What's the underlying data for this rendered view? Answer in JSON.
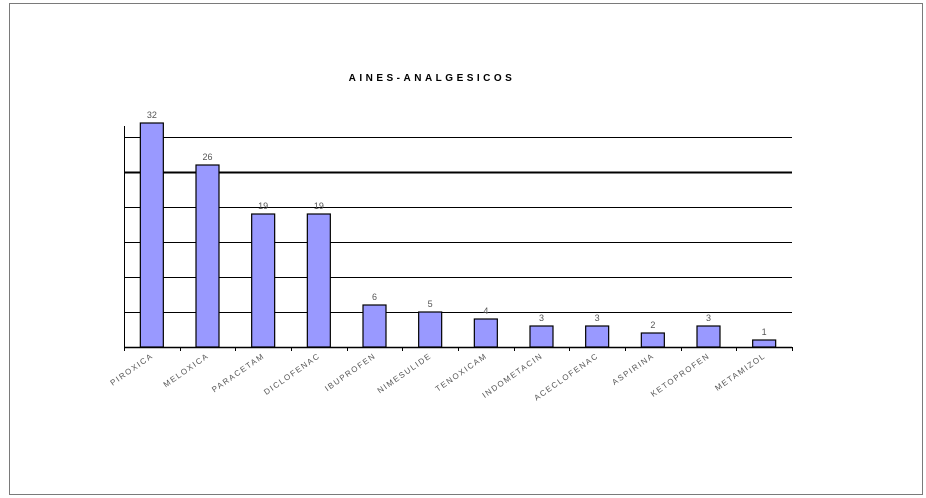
{
  "chart_data": {
    "type": "bar",
    "title": "AINES-ANALGESICOS",
    "categories": [
      "PIROXICAM",
      "MELOXICAM",
      "PARACETAMOL",
      "DICLOFENAC",
      "IBUPROFENO",
      "NIMESULIDE",
      "TENOXICAM",
      "INDOMETACINA",
      "ACECLOFENAC",
      "ASPIRINA",
      "KETOPROFENO",
      "METAMIZOL"
    ],
    "tick_labels": [
      "PIROXICA",
      "MELOXICA",
      "PARACETAM",
      "DICLOFENAC",
      "IBUPROFEN",
      "NIMESULIDE",
      "TENOXICAM",
      "INDOMETACIN",
      "ACECLOFENAC",
      "ASPIRINA",
      "KETOPROFEN",
      "METAMIZOL"
    ],
    "values": [
      32,
      26,
      19,
      19,
      6,
      5,
      4,
      3,
      3,
      2,
      3,
      1
    ],
    "ylim": [
      0,
      35
    ],
    "gridlines": [
      5,
      10,
      15,
      20,
      25,
      30
    ],
    "bar_color": "#9999ff",
    "show_data_labels": true,
    "show_y_tick_labels": false,
    "legend": "none",
    "xlabel": "",
    "ylabel": ""
  }
}
